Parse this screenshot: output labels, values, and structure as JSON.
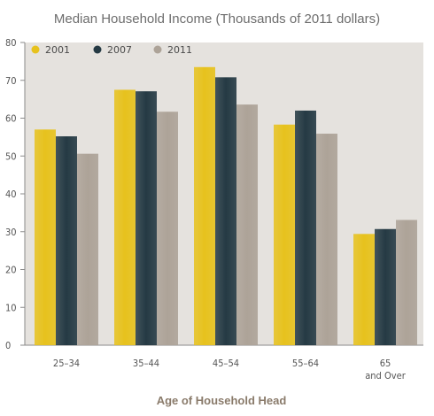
{
  "chart_data": {
    "type": "bar",
    "title": "Median Household Income (Thousands of 2011 dollars)",
    "xlabel": "Age of Household Head",
    "ylabel": "",
    "ylim": [
      0,
      80
    ],
    "yticks": [
      "0",
      "10",
      "20",
      "30",
      "40",
      "50",
      "60",
      "70",
      "80"
    ],
    "categories": [
      {
        "line1": "25–34",
        "line2": ""
      },
      {
        "line1": "35–44",
        "line2": ""
      },
      {
        "line1": "45–54",
        "line2": ""
      },
      {
        "line1": "55–64",
        "line2": ""
      },
      {
        "line1": "65",
        "line2": "and Over"
      }
    ],
    "series": [
      {
        "name": "2001",
        "color": "#e7c21d",
        "values": [
          57.0,
          67.5,
          73.5,
          58.3,
          29.4
        ]
      },
      {
        "name": "2007",
        "color": "#253a44",
        "values": [
          55.2,
          67.1,
          70.8,
          62.0,
          30.7
        ]
      },
      {
        "name": "2011",
        "color": "#ada398",
        "values": [
          50.6,
          61.7,
          63.6,
          55.9,
          33.1
        ]
      }
    ],
    "grid": false,
    "legend_position": "top-left",
    "plot_background": "#e5e2de"
  }
}
